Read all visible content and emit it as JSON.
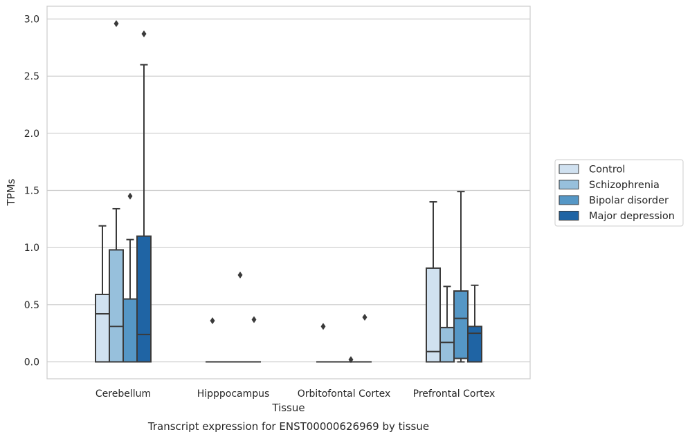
{
  "colors": {
    "Control": "#d0e1f0",
    "Schizophrenia": "#97c0dc",
    "Bipolar disorder": "#5597c6",
    "Major depression": "#1f64a4",
    "line": "#3a3a3a",
    "grid": "#cccccc",
    "frame": "#cccccc"
  },
  "chart_data": {
    "type": "box",
    "xlabel": "Tissue",
    "ylabel": "TPMs",
    "caption": "Transcript expression for ENST00000626969 by tissue",
    "ylim": [
      -0.14,
      3.1
    ],
    "yticks": [
      "0.0",
      "0.5",
      "1.0",
      "1.5",
      "2.0",
      "2.5",
      "3.0"
    ],
    "grid": "horizontal",
    "legend_position": "right",
    "categories": [
      "Cerebellum",
      "Hipppocampus",
      "Orbitofontal Cortex",
      "Prefrontal Cortex"
    ],
    "groups": [
      "Control",
      "Schizophrenia",
      "Bipolar disorder",
      "Major depression"
    ],
    "boxes": [
      {
        "category": "Cerebellum",
        "group": "Control",
        "q1": 0,
        "median": 0.42,
        "q3": 0.59,
        "whislo": 0,
        "whishi": 1.19,
        "fliers": []
      },
      {
        "category": "Cerebellum",
        "group": "Schizophrenia",
        "q1": 0,
        "median": 0.31,
        "q3": 0.98,
        "whislo": 0,
        "whishi": 1.34,
        "fliers": [
          2.96
        ]
      },
      {
        "category": "Cerebellum",
        "group": "Bipolar disorder",
        "q1": 0,
        "median": 0,
        "q3": 0.55,
        "whislo": 0,
        "whishi": 1.07,
        "fliers": [
          1.45
        ]
      },
      {
        "category": "Cerebellum",
        "group": "Major depression",
        "q1": 0,
        "median": 0.24,
        "q3": 1.1,
        "whislo": 0,
        "whishi": 2.6,
        "fliers": [
          2.87
        ]
      },
      {
        "category": "Hipppocampus",
        "group": "Control",
        "q1": 0,
        "median": 0,
        "q3": 0,
        "whislo": 0,
        "whishi": 0,
        "fliers": [
          0.36
        ]
      },
      {
        "category": "Hipppocampus",
        "group": "Schizophrenia",
        "q1": 0,
        "median": 0,
        "q3": 0,
        "whislo": 0,
        "whishi": 0,
        "fliers": []
      },
      {
        "category": "Hipppocampus",
        "group": "Bipolar disorder",
        "q1": 0,
        "median": 0,
        "q3": 0,
        "whislo": 0,
        "whishi": 0,
        "fliers": [
          0.76
        ]
      },
      {
        "category": "Hipppocampus",
        "group": "Major depression",
        "q1": 0,
        "median": 0,
        "q3": 0,
        "whislo": 0,
        "whishi": 0,
        "fliers": [
          0.37
        ]
      },
      {
        "category": "Orbitofontal Cortex",
        "group": "Control",
        "q1": 0,
        "median": 0,
        "q3": 0,
        "whislo": 0,
        "whishi": 0,
        "fliers": [
          0.31
        ]
      },
      {
        "category": "Orbitofontal Cortex",
        "group": "Schizophrenia",
        "q1": 0,
        "median": 0,
        "q3": 0,
        "whislo": 0,
        "whishi": 0,
        "fliers": []
      },
      {
        "category": "Orbitofontal Cortex",
        "group": "Bipolar disorder",
        "q1": 0,
        "median": 0,
        "q3": 0,
        "whislo": 0,
        "whishi": 0,
        "fliers": [
          0.02
        ]
      },
      {
        "category": "Orbitofontal Cortex",
        "group": "Major depression",
        "q1": 0,
        "median": 0,
        "q3": 0,
        "whislo": 0,
        "whishi": 0,
        "fliers": [
          0.39
        ]
      },
      {
        "category": "Prefrontal Cortex",
        "group": "Control",
        "q1": 0,
        "median": 0.09,
        "q3": 0.82,
        "whislo": 0,
        "whishi": 1.4,
        "fliers": []
      },
      {
        "category": "Prefrontal Cortex",
        "group": "Schizophrenia",
        "q1": 0,
        "median": 0.17,
        "q3": 0.3,
        "whislo": 0,
        "whishi": 0.66,
        "fliers": []
      },
      {
        "category": "Prefrontal Cortex",
        "group": "Bipolar disorder",
        "q1": 0.03,
        "median": 0.38,
        "q3": 0.62,
        "whislo": 0,
        "whishi": 1.49,
        "fliers": []
      },
      {
        "category": "Prefrontal Cortex",
        "group": "Major depression",
        "q1": 0,
        "median": 0.25,
        "q3": 0.31,
        "whislo": 0,
        "whishi": 0.67,
        "fliers": []
      }
    ]
  }
}
